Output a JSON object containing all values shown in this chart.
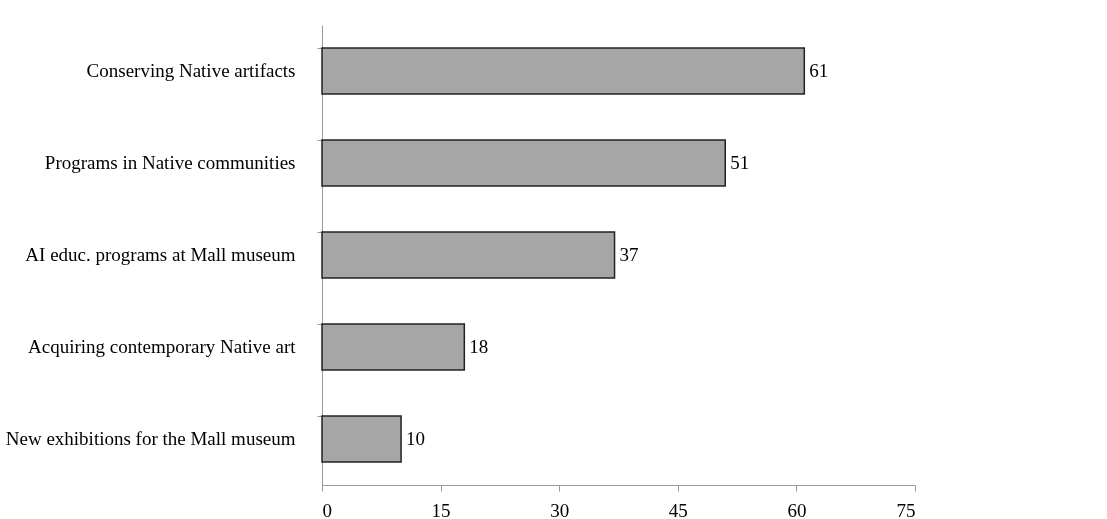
{
  "chart_data": {
    "type": "bar",
    "orientation": "horizontal",
    "categories": [
      "Conserving Native artifacts",
      "Programs in Native communities",
      "AI educ. programs at Mall museum",
      "Acquiring contemporary Native art",
      "New exhibitions for the Mall museum"
    ],
    "values": [
      61,
      51,
      37,
      18,
      10
    ],
    "color": "#a6a6a6",
    "xlim": [
      0,
      75
    ],
    "xticks": [
      0,
      15,
      30,
      45,
      60,
      75
    ],
    "data_labels": true,
    "grid": false
  }
}
